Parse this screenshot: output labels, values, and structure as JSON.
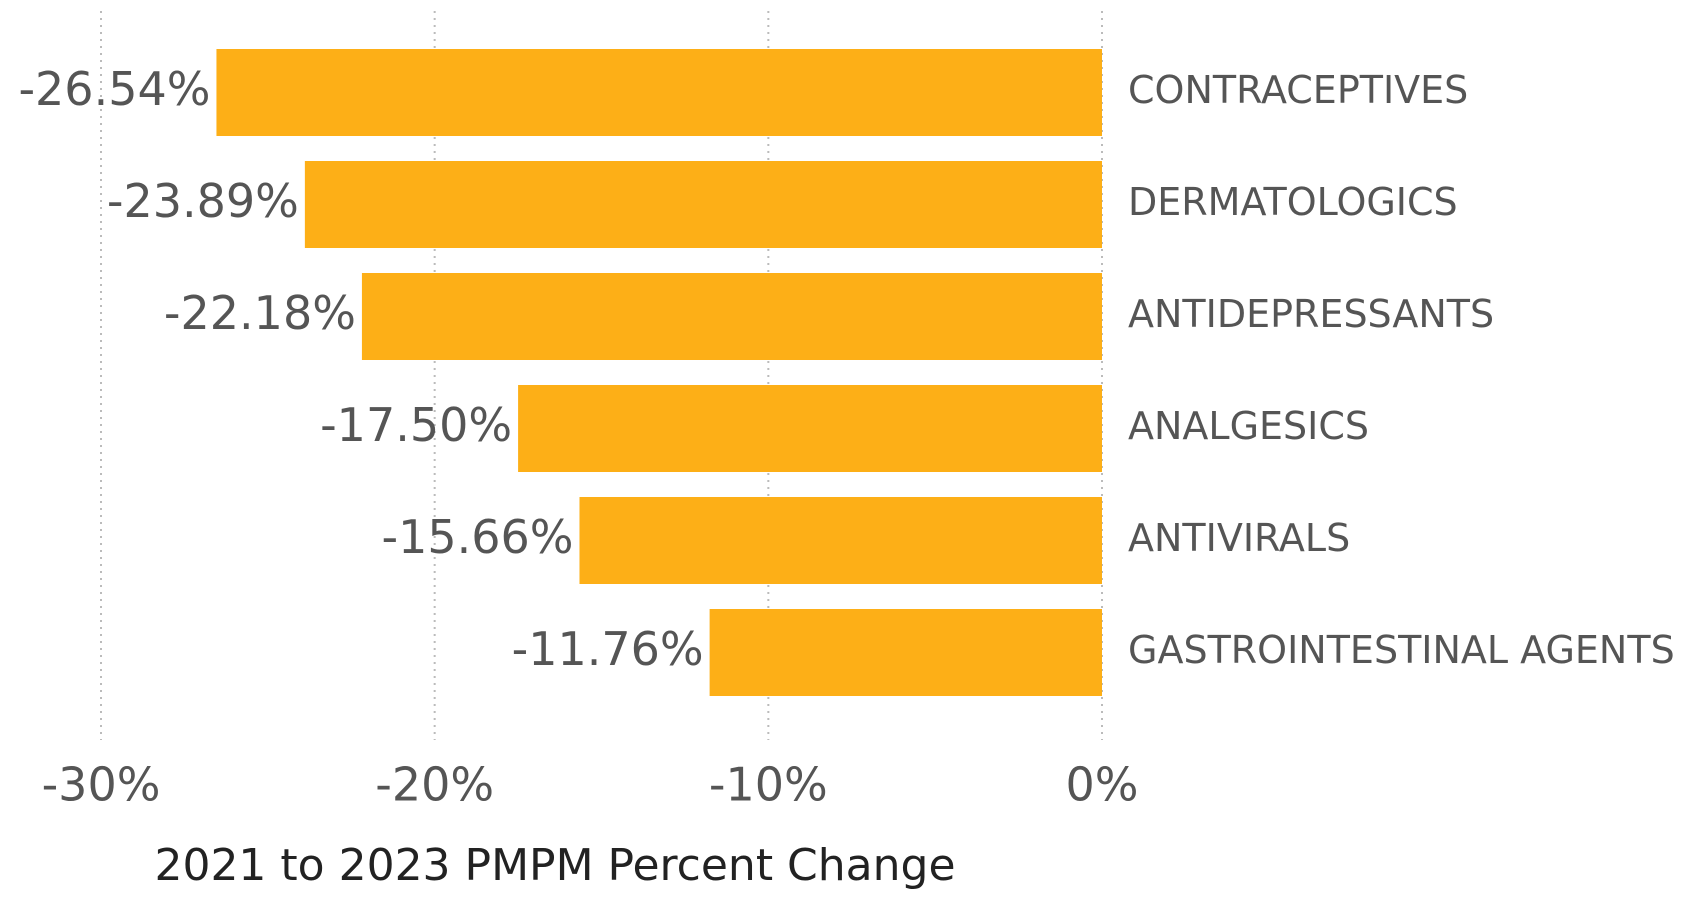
{
  "chart_data": {
    "type": "bar",
    "orientation": "horizontal",
    "x_label": "2021 to 2023 PMPM Percent Change",
    "categories": [
      "CONTRACEPTIVES",
      "DERMATOLOGICS",
      "ANTIDEPRESSANTS",
      "ANALGESICS",
      "ANTIVIRALS",
      "GASTROINTESTINAL AGENTS"
    ],
    "values": [
      -26.54,
      -23.89,
      -22.18,
      -17.5,
      -15.66,
      -11.76
    ],
    "value_labels": [
      "-26.54%",
      "-23.89%",
      "-22.18%",
      "-17.50%",
      "-15.66%",
      "-11.76%"
    ],
    "color": "#FDAF17",
    "xlim": [
      -30,
      0
    ],
    "xticks": [
      {
        "value": -30,
        "label": "-30%"
      },
      {
        "value": -20,
        "label": "-20%"
      },
      {
        "value": -10,
        "label": "-10%"
      },
      {
        "value": 0,
        "label": "0%"
      }
    ],
    "grid": true
  }
}
